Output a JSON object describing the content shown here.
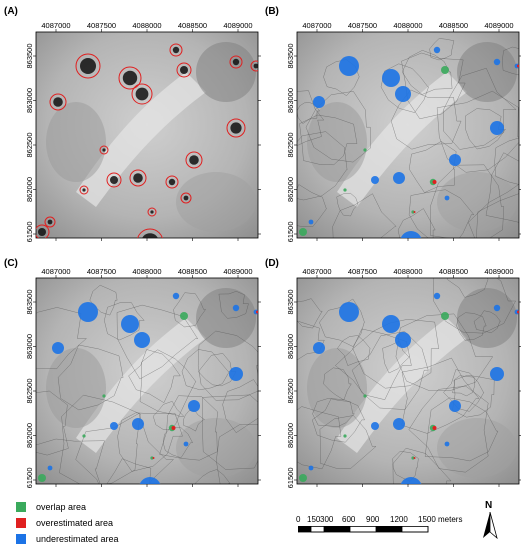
{
  "panels": [
    {
      "letter": "(A)"
    },
    {
      "letter": "(B)"
    },
    {
      "letter": "(C)"
    },
    {
      "letter": "(D)"
    }
  ],
  "x_ticks": [
    "4087000",
    "4087500",
    "4088000",
    "4088500",
    "4089000"
  ],
  "y_ticks": [
    "863500",
    "863000",
    "862500",
    "862000",
    "861500"
  ],
  "legend": [
    {
      "label": "overlap area",
      "color": "#3aaa5c"
    },
    {
      "label": "overestimated area",
      "color": "#e02020"
    },
    {
      "label": "underestimated area",
      "color": "#1c73e6"
    }
  ],
  "scalebar": {
    "labels": [
      "0",
      "150",
      "300",
      "600",
      "900",
      "1200",
      "1500 meters"
    ]
  },
  "north_arrow": {
    "label": "N"
  }
}
